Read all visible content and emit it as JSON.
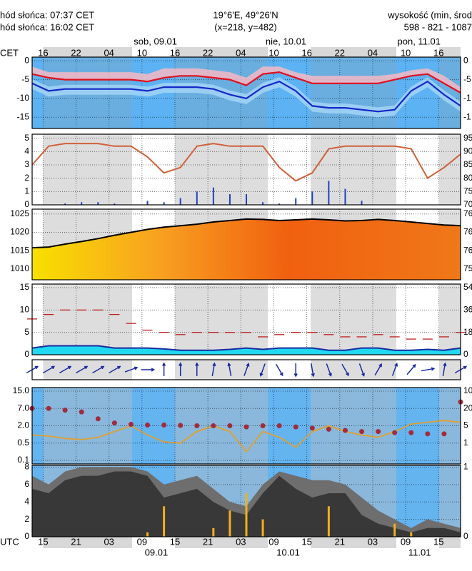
{
  "header": {
    "sunrise": "hód słońca: 07:37 CET",
    "sunset": "hód słońca: 16:02 CET",
    "coords": "19°6'E, 49°26'N",
    "grid": "(x=218, y=482)",
    "elev_title": "wysokość (min, środ",
    "elev": "598 - 821 - 1087"
  },
  "time_axis": {
    "xlim": [
      0,
      78
    ],
    "top_label": "CET",
    "bottom_label": "UTC",
    "cet_ticks": [
      {
        "value": 2,
        "label": "16"
      },
      {
        "value": 8,
        "label": "22"
      },
      {
        "value": 14,
        "label": "04"
      },
      {
        "value": 20,
        "label": "10"
      },
      {
        "value": 26,
        "label": "16"
      },
      {
        "value": 32,
        "label": "22"
      },
      {
        "value": 38,
        "label": "04"
      },
      {
        "value": 44,
        "label": "10"
      },
      {
        "value": 50,
        "label": "16"
      },
      {
        "value": 56,
        "label": "22"
      },
      {
        "value": 62,
        "label": "04"
      },
      {
        "value": 68,
        "label": "10"
      },
      {
        "value": 74,
        "label": "16"
      }
    ],
    "utc_ticks": [
      {
        "value": 2,
        "label": "15"
      },
      {
        "value": 8,
        "label": "21"
      },
      {
        "value": 14,
        "label": "03"
      },
      {
        "value": 20,
        "label": "09"
      },
      {
        "value": 26,
        "label": "15"
      },
      {
        "value": 32,
        "label": "21"
      },
      {
        "value": 38,
        "label": "03"
      },
      {
        "value": 44,
        "label": "09"
      },
      {
        "value": 50,
        "label": "15"
      },
      {
        "value": 56,
        "label": "21"
      },
      {
        "value": 62,
        "label": "03"
      },
      {
        "value": 68,
        "label": "09"
      },
      {
        "value": 74,
        "label": "15"
      }
    ],
    "cet_days": [
      {
        "value": 18.5,
        "label": "sob, 09.01"
      },
      {
        "value": 42.5,
        "label": "nie, 10.01"
      },
      {
        "value": 66.5,
        "label": "pon, 11.01"
      }
    ],
    "utc_days": [
      {
        "value": 20.5,
        "label": "09.01"
      },
      {
        "value": 44.5,
        "label": "10.01"
      },
      {
        "value": 68.5,
        "label": "11.01"
      }
    ]
  },
  "chart_data": [
    {
      "type": "temperature",
      "x": [
        0,
        3,
        6,
        9,
        12,
        15,
        18,
        21,
        24,
        27,
        30,
        33,
        36,
        39,
        42,
        45,
        48,
        51,
        54,
        57,
        60,
        63,
        66,
        69,
        72,
        75,
        78
      ],
      "ylim": [
        -18,
        1
      ],
      "yticks": [
        0,
        -5,
        -10,
        -15
      ],
      "right_labels": [
        {
          "value": 0,
          "label": "0"
        },
        {
          "value": -5,
          "label": "-5"
        },
        {
          "value": -10,
          "label": "-1"
        },
        {
          "value": -15,
          "label": "-1"
        }
      ],
      "series": [
        {
          "color": "#f4b8c4",
          "values": [
            -1.5,
            -3,
            -3,
            -3,
            -3,
            -3,
            -3,
            -3.5,
            -2,
            -2,
            -2,
            -2.5,
            -3,
            -4.5,
            -1.5,
            -1.5,
            -3,
            -4,
            -4,
            -4,
            -4,
            -4,
            -3.5,
            -2.5,
            -2,
            -4,
            -7
          ]
        },
        {
          "color": "#e0101e",
          "values": [
            -3.5,
            -4.5,
            -5,
            -5,
            -5,
            -5,
            -5,
            -5.5,
            -4.5,
            -4,
            -4,
            -4.5,
            -5,
            -6.5,
            -3.5,
            -3,
            -4.5,
            -6,
            -6,
            -6,
            -6,
            -6,
            -5,
            -4,
            -3.5,
            -6,
            -8.5
          ]
        },
        {
          "color": "#1428c8",
          "values": [
            -6,
            -8,
            -7.5,
            -7.5,
            -7.5,
            -7.5,
            -7.5,
            -8,
            -7,
            -7,
            -7,
            -7.5,
            -9,
            -10,
            -7,
            -5.5,
            -8,
            -12,
            -12.5,
            -12.5,
            -13,
            -13.5,
            -13,
            -8,
            -5.5,
            -9,
            -12
          ]
        }
      ]
    },
    {
      "type": "precipitation",
      "x": [
        0,
        3,
        6,
        9,
        12,
        15,
        18,
        21,
        24,
        27,
        30,
        33,
        36,
        39,
        42,
        45,
        48,
        51,
        54,
        57,
        60,
        63,
        66,
        69,
        72,
        75,
        78
      ],
      "ylim": [
        0,
        5.3
      ],
      "yticks": [
        0,
        1,
        2,
        3,
        4,
        5
      ],
      "y2lim": [
        70,
        96.5
      ],
      "y2ticks": [
        70,
        75,
        80,
        85,
        90,
        95
      ],
      "series": [
        {
          "color": "#2040c0",
          "values": [
            0,
            0,
            0.1,
            0.2,
            0.2,
            0.1,
            0,
            0.3,
            0.2,
            0.5,
            1,
            1.3,
            0.8,
            0.8,
            0.2,
            0.1,
            0.5,
            1,
            1.8,
            1.2,
            0.3,
            0,
            0,
            0,
            0,
            0,
            0
          ]
        },
        {
          "color": "#d0603a",
          "axis": "y2",
          "values": [
            85,
            92,
            93,
            93,
            93,
            92,
            92,
            88,
            82,
            84,
            92,
            93,
            92,
            92,
            92,
            84,
            79,
            82,
            91,
            92,
            92,
            92,
            92,
            91,
            80,
            84,
            89
          ]
        }
      ]
    },
    {
      "type": "pressure",
      "x": [
        0,
        3,
        6,
        9,
        12,
        15,
        18,
        21,
        24,
        27,
        30,
        33,
        36,
        39,
        42,
        45,
        48,
        51,
        54,
        57,
        60,
        63,
        66,
        69,
        72,
        75,
        78
      ],
      "ylim": [
        1007.1,
        1026.3
      ],
      "yticks": [
        1010,
        1015,
        1020,
        1025
      ],
      "right_labels": [
        {
          "value": 1025,
          "label": "76"
        },
        {
          "value": 1020,
          "label": "76"
        },
        {
          "value": 1015,
          "label": "76"
        },
        {
          "value": 1010,
          "label": "75"
        }
      ],
      "series": [
        {
          "color": "#000000",
          "values": [
            1015.8,
            1016,
            1016.8,
            1017.5,
            1018.3,
            1019.2,
            1020,
            1020.8,
            1021.4,
            1021.8,
            1022.2,
            1022.8,
            1023.2,
            1023.6,
            1023.5,
            1023.2,
            1023.4,
            1023.6,
            1023.4,
            1023.1,
            1023.2,
            1023.5,
            1023.2,
            1022.8,
            1022.4,
            1022,
            1021.8
          ]
        }
      ]
    },
    {
      "type": "wind",
      "x": [
        0,
        3,
        6,
        9,
        12,
        15,
        18,
        21,
        24,
        27,
        30,
        33,
        36,
        39,
        42,
        45,
        48,
        51,
        54,
        57,
        60,
        63,
        66,
        69,
        72,
        75,
        78
      ],
      "ylim": [
        0,
        15.8
      ],
      "yticks": [
        0,
        5,
        10,
        15
      ],
      "y2lim": [
        0,
        56.9
      ],
      "y2ticks": [
        0,
        18,
        36,
        54
      ],
      "series": [
        {
          "color": "#20d8f0",
          "values": [
            1.5,
            2,
            2,
            2,
            2,
            1.5,
            1.5,
            1.5,
            1.3,
            1,
            1,
            1,
            1.2,
            1.5,
            1.2,
            1.5,
            1.5,
            1.5,
            1,
            1,
            1.5,
            1.5,
            1,
            1,
            1.2,
            1,
            1.5
          ]
        },
        {
          "color": "#c02020",
          "values": [
            8,
            9,
            10,
            10,
            10,
            9,
            7,
            5.5,
            5,
            4.5,
            5,
            5,
            5,
            5,
            4,
            4.5,
            5,
            5,
            4.5,
            4,
            4,
            4.5,
            4,
            3.5,
            3.5,
            4,
            5
          ]
        }
      ]
    },
    {
      "type": "wind_direction",
      "x": [
        0,
        3,
        6,
        9,
        12,
        15,
        18,
        21,
        24,
        27,
        30,
        33,
        36,
        39,
        42,
        45,
        48,
        51,
        54,
        57,
        60,
        63,
        66,
        69,
        72,
        75,
        78
      ],
      "color": "#1a2aa0",
      "values": [
        60,
        60,
        60,
        60,
        60,
        60,
        70,
        90,
        0,
        0,
        0,
        10,
        350,
        20,
        200,
        150,
        180,
        170,
        160,
        150,
        160,
        30,
        20,
        40,
        80,
        10,
        60
      ]
    },
    {
      "type": "visibility",
      "x": [
        0,
        3,
        6,
        9,
        12,
        15,
        18,
        21,
        24,
        27,
        30,
        33,
        36,
        39,
        42,
        45,
        48,
        51,
        54,
        57,
        60,
        63,
        66,
        69,
        72,
        75,
        78
      ],
      "ylim": [
        0.1,
        15
      ],
      "yticks": [
        {
          "value": 15,
          "label": "15.0"
        },
        {
          "value": 7,
          "label": "7.0"
        },
        {
          "value": 2,
          "label": "2.0"
        },
        {
          "value": 0.5,
          "label": "0.5"
        },
        {
          "value": 0.1,
          "label": "0.1"
        }
      ],
      "right_labels": [
        {
          "value": 15,
          "label": "10"
        },
        {
          "value": 7,
          "label": "20"
        },
        {
          "value": 2,
          "label": "5"
        },
        {
          "value": 0.5,
          "label": "1"
        }
      ],
      "series": [
        {
          "color": "#a02c3c",
          "values": [
            7,
            7,
            6.5,
            6,
            4,
            2.8,
            2.4,
            2.2,
            2.2,
            2.1,
            2,
            2,
            2,
            1.9,
            2,
            2,
            1.9,
            1.8,
            1.7,
            1.6,
            1.5,
            1.5,
            1.4,
            1.4,
            1.3,
            1.3,
            10
          ]
        },
        {
          "color": "#e0a030",
          "values": [
            1.2,
            1.1,
            0.9,
            0.8,
            1,
            1.5,
            2,
            1.2,
            0.6,
            0.5,
            1.5,
            2,
            1.5,
            0.3,
            1.5,
            1,
            0.4,
            1.5,
            2,
            1.5,
            1.2,
            1,
            1.5,
            2.5,
            3,
            3.5,
            3
          ]
        }
      ]
    },
    {
      "type": "clouds",
      "x": [
        0,
        3,
        6,
        9,
        12,
        15,
        18,
        21,
        24,
        27,
        30,
        33,
        36,
        39,
        42,
        45,
        48,
        51,
        54,
        57,
        60,
        63,
        66,
        69,
        72,
        75,
        78
      ],
      "ylim": [
        0,
        8.2
      ],
      "yticks": [
        0,
        2,
        4,
        6,
        8
      ],
      "right_labels": [
        {
          "value": 8,
          "label": "1"
        },
        {
          "value": 0,
          "label": "0"
        }
      ],
      "series": [
        {
          "color": "#6e6e6e",
          "values": [
            7,
            6,
            7.5,
            8,
            8,
            8,
            8,
            7.5,
            6,
            6.5,
            7,
            5.5,
            4,
            3.5,
            6,
            7.5,
            7,
            6.5,
            6.5,
            6,
            4.5,
            3,
            2,
            1,
            2,
            1.5,
            1
          ]
        },
        {
          "color": "#383838",
          "values": [
            5.5,
            5,
            6.5,
            7,
            7,
            7.5,
            7.5,
            7,
            4.5,
            5,
            5.5,
            4,
            3,
            2.5,
            5,
            7,
            5.5,
            4.5,
            5,
            5,
            2.5,
            1.5,
            1,
            0.5,
            1,
            1,
            0.5
          ]
        },
        {
          "color": "#f0b020",
          "values": [
            0,
            0,
            0,
            0,
            0,
            0,
            0,
            0.5,
            3.5,
            0,
            0,
            1,
            3,
            5,
            2,
            0,
            0,
            0,
            3.5,
            0,
            0,
            0,
            1.5,
            0.5,
            0,
            0,
            0
          ]
        }
      ]
    }
  ]
}
